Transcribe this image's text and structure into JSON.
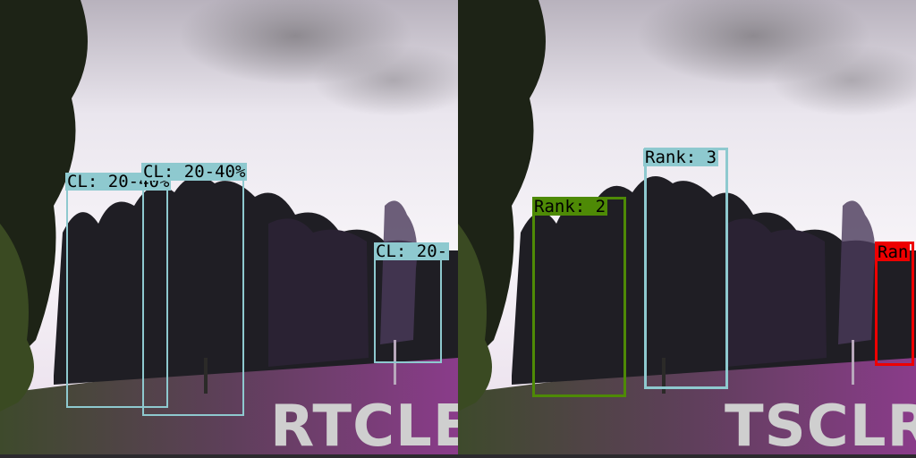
{
  "panels": [
    {
      "method_label": "RTCLE",
      "detections": [
        {
          "label": "CL: 20-40%",
          "color": "#8ec9cf"
        },
        {
          "label": "CL: 20-40%",
          "color": "#8ec9cf"
        },
        {
          "label": "CL: 20-",
          "color": "#8ec9cf"
        }
      ]
    },
    {
      "method_label": "TSCLR",
      "detections": [
        {
          "label": "Rank: 2",
          "color": "#4e8a06"
        },
        {
          "label": "Rank: 3",
          "color": "#8ec9cf"
        },
        {
          "label": "Ran",
          "color": "#ee0000"
        }
      ]
    }
  ]
}
